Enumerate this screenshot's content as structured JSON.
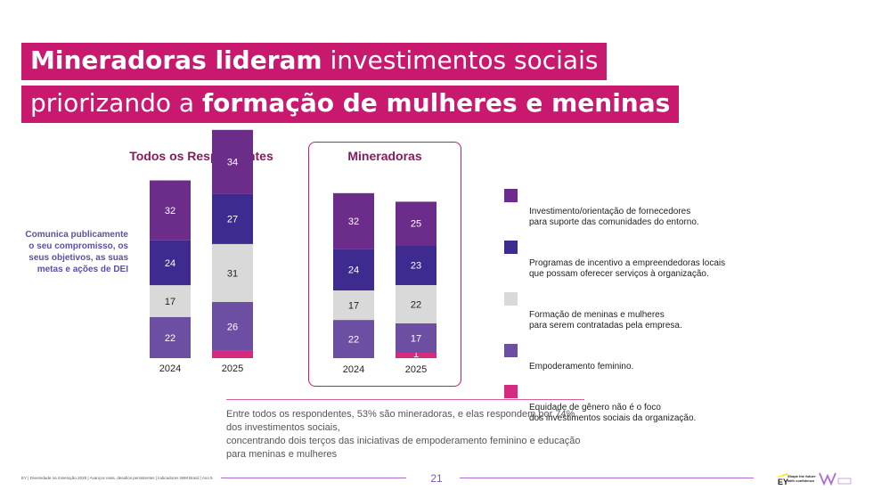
{
  "title": {
    "line1_bold": "Mineradoras lideram",
    "line1_rest": "investimentos sociais",
    "line2_start": "priorizando a",
    "line2_bold": "formação de mulheres e meninas"
  },
  "side_label": "Comunica publicamente o seu compromisso, os seus objetivos, as suas metas e ações de DEI",
  "colors": {
    "fornecedores": "#6b2c8a",
    "empreendedoras": "#3f2a8f",
    "formacao": "#d9d9d9",
    "empoderamento": "#6c4fa3",
    "equidade": "#d42a7f",
    "accent": "#c8196e"
  },
  "chart_data": [
    {
      "type": "bar",
      "stacked": true,
      "title": "Todos os Respondentes",
      "categories": [
        "2024",
        "2025"
      ],
      "series": [
        {
          "name": "Equidade de gênero não é o foco dos investimentos sociais da organização.",
          "key": "equidade",
          "values": [
            0,
            4
          ]
        },
        {
          "name": "Empoderamento feminino.",
          "key": "empoderamento",
          "values": [
            22,
            26
          ]
        },
        {
          "name": "Formação de meninas e mulheres para serem contratadas pela empresa.",
          "key": "formacao",
          "values": [
            17,
            31
          ]
        },
        {
          "name": "Programas de incentivo a empreendedoras locais que possam oferecer serviços à organização.",
          "key": "empreendedoras",
          "values": [
            24,
            27
          ]
        },
        {
          "name": "Investimento/orientação de fornecedores para suporte das comunidades do entorno.",
          "key": "fornecedores",
          "values": [
            32,
            34
          ]
        }
      ]
    },
    {
      "type": "bar",
      "stacked": true,
      "title": "Mineradoras",
      "categories": [
        "2024",
        "2025"
      ],
      "series": [
        {
          "name": "Equidade de gênero não é o foco dos investimentos sociais da organização.",
          "key": "equidade",
          "values": [
            0,
            1
          ]
        },
        {
          "name": "Empoderamento feminino.",
          "key": "empoderamento",
          "values": [
            22,
            17
          ]
        },
        {
          "name": "Formação de meninas e mulheres para serem contratadas pela empresa.",
          "key": "formacao",
          "values": [
            17,
            22
          ]
        },
        {
          "name": "Programas de incentivo a empreendedoras locais que possam oferecer serviços à organização.",
          "key": "empreendedoras",
          "values": [
            24,
            23
          ]
        },
        {
          "name": "Investimento/orientação de fornecedores para suporte das comunidades do entorno.",
          "key": "fornecedores",
          "values": [
            32,
            25
          ]
        }
      ]
    }
  ],
  "legend": [
    {
      "key": "fornecedores",
      "label": "Investimento/orientação de fornecedores\npara suporte das comunidades do entorno."
    },
    {
      "key": "empreendedoras",
      "label": "Programas de incentivo a empreendedoras locais\nque possam oferecer serviços à organização."
    },
    {
      "key": "formacao",
      "label": "Formação de meninas e mulheres\npara serem contratadas pela empresa."
    },
    {
      "key": "empoderamento",
      "label": "Empoderamento feminino."
    },
    {
      "key": "equidade",
      "label": "Equidade de gênero não é o foco\ndos investimentos sociais da organização."
    }
  ],
  "note": "Entre todos os respondentes, 53% são mineradoras, e elas respondem por 74% dos investimentos sociais,\nconcentrando dois terços das iniciativas de empoderamento feminino e educação para meninas e mulheres",
  "footer": {
    "text": "EY | Diversidade na mineração 2025 | Avanços reais, desafios persistentes | Indicadores WIM Brasil | Ano 5",
    "page_number": "21",
    "ey_tagline": "Shape the future\nwith confidence",
    "ey_brand": "EY"
  }
}
